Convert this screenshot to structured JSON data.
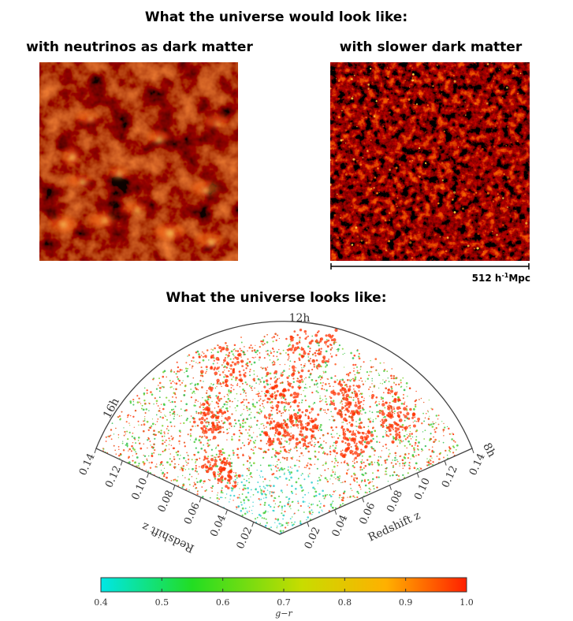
{
  "titles": {
    "main": "What the universe would look like:",
    "left": "with neutrinos as dark matter",
    "right": "with slower dark matter",
    "lower": "What the universe looks like:"
  },
  "scale_bar": {
    "value": "512 h",
    "exponent": "-1",
    "unit": "Mpc"
  },
  "wedge": {
    "ra_labels": [
      "12h",
      "16h",
      "8h"
    ],
    "left_axis_ticks": [
      "0.14",
      "0.12",
      "0.10",
      "0.08",
      "0.06",
      "0.04",
      "0.02"
    ],
    "right_axis_ticks": [
      "0.02",
      "0.04",
      "0.06",
      "0.08",
      "0.10",
      "0.12",
      "0.14"
    ],
    "left_axis_label": "Redshift z",
    "right_axis_label": "Redshift z"
  },
  "colorbar": {
    "ticks": [
      "0.4",
      "0.5",
      "0.6",
      "0.7",
      "0.8",
      "0.9",
      "1.0"
    ],
    "label": "g−r",
    "colors": [
      "#00e6e6",
      "#22dd22",
      "#c8dc00",
      "#ffb000",
      "#ff2000"
    ]
  },
  "panel_colors": {
    "neutrino_base": "#b22000",
    "cold_base": "#1a0000",
    "hot": "#ffd040"
  }
}
